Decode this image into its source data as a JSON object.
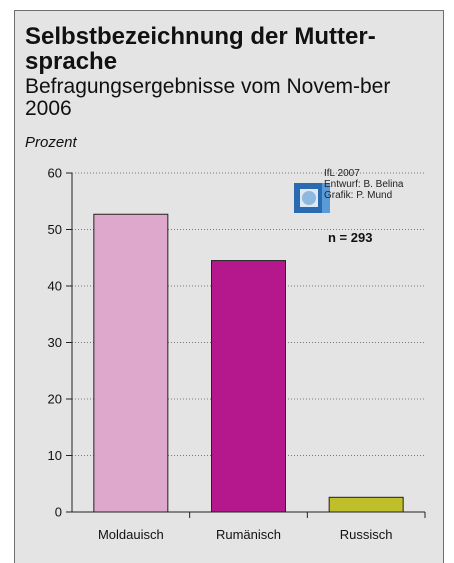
{
  "header": {
    "title": "Selbstbezeichnung der Mutter-sprache",
    "subtitle": "Befragungsergebnisse vom Novem-ber 2006"
  },
  "credits": {
    "line1": "IfL 2007",
    "line2": "Entwurf: B. Belina",
    "line3": "Grafik: P. Mund",
    "logo": "ifl-globe-logo-icon"
  },
  "sample_note": "n = 293",
  "colors": {
    "background": "#e4e4e4",
    "moldauisch": "#dda8cc",
    "rumaenisch": "#b5188d",
    "russisch": "#bfbf2c",
    "logo_blue": "#2a6ab0"
  },
  "chart_data": {
    "type": "bar",
    "title": "Selbstbezeichnung der Mutter-sprache",
    "subtitle": "Befragungsergebnisse vom Novem-ber 2006",
    "ylabel": "Prozent",
    "xlabel": "",
    "categories": [
      "Moldauisch",
      "Rumänisch",
      "Russisch"
    ],
    "values": [
      52.7,
      44.5,
      2.6
    ],
    "colors": [
      "#dda8cc",
      "#b5188d",
      "#bfbf2c"
    ],
    "ylim": [
      0,
      60
    ],
    "yticks": [
      0,
      10,
      20,
      30,
      40,
      50,
      60
    ],
    "grid": "y-dotted",
    "legend": "none",
    "annotation": "n = 293"
  }
}
